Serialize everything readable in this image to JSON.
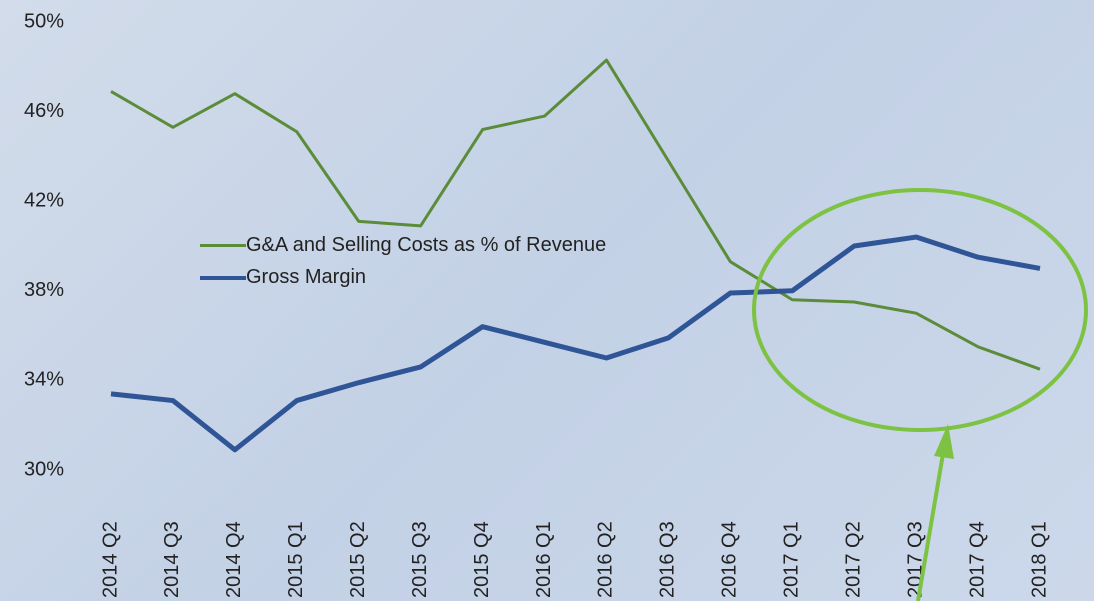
{
  "chart_data": {
    "type": "line",
    "categories": [
      "2014 Q2",
      "2014 Q3",
      "2014 Q4",
      "2015 Q1",
      "2015 Q2",
      "2015 Q3",
      "2015 Q4",
      "2016 Q1",
      "2016 Q2",
      "2016 Q3",
      "2016 Q4",
      "2017 Q1",
      "2017 Q2",
      "2017 Q3",
      "2017 Q4",
      "2018 Q1"
    ],
    "series": [
      {
        "name": "G&A and Selling Costs as % of Revenue",
        "color": "#5b8c3a",
        "values": [
          46.9,
          45.3,
          46.8,
          45.1,
          41.1,
          40.9,
          45.2,
          45.8,
          48.3,
          43.8,
          39.3,
          37.6,
          37.5,
          37.0,
          35.5,
          34.5
        ]
      },
      {
        "name": "Gross Margin",
        "color": "#2f5597",
        "values": [
          33.4,
          33.1,
          30.9,
          33.1,
          33.9,
          34.6,
          36.4,
          35.7,
          35.0,
          35.9,
          37.9,
          38.0,
          40.0,
          40.4,
          39.5,
          39.0
        ]
      }
    ],
    "ylim": [
      30,
      50
    ],
    "yticks": [
      {
        "value": 30,
        "label": "30%"
      },
      {
        "value": 34,
        "label": "34%"
      },
      {
        "value": 38,
        "label": "38%"
      },
      {
        "value": 42,
        "label": "42%"
      },
      {
        "value": 46,
        "label": "46%"
      },
      {
        "value": 50,
        "label": "50%"
      }
    ],
    "legend": "inside-left"
  }
}
